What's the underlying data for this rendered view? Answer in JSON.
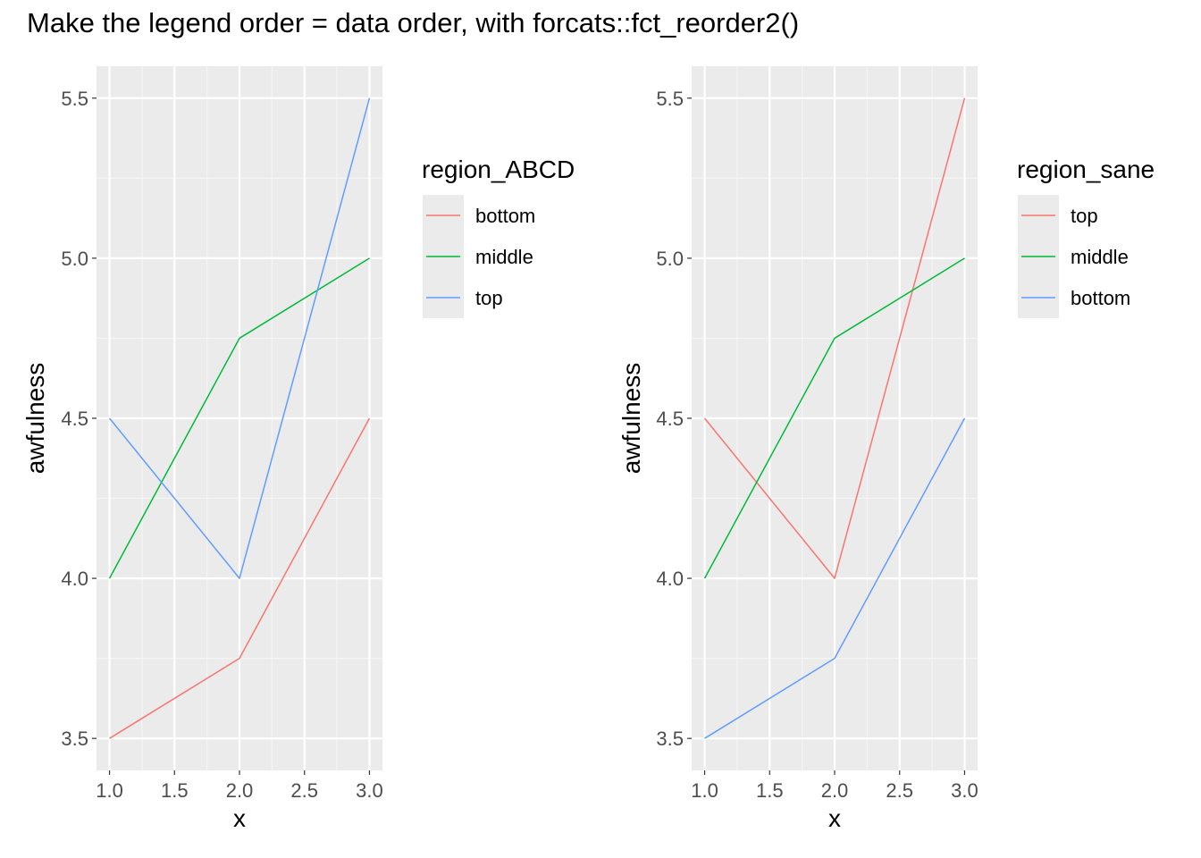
{
  "title": "Make the legend order = data order, with forcats::fct_reorder2()",
  "colors": {
    "panel_bg": "#EBEBEB",
    "grid_major": "#FFFFFF",
    "grid_minor": "#F5F5F5",
    "tick_text": "#4D4D4D",
    "red": "#F8766D",
    "green": "#00BA38",
    "blue": "#619CFF"
  },
  "chart_data": [
    {
      "type": "line",
      "xlabel": "x",
      "ylabel": "awfulness",
      "xlim": [
        0.9,
        3.1
      ],
      "ylim": [
        3.4,
        5.6
      ],
      "x_ticks": [
        1.0,
        1.5,
        2.0,
        2.5,
        3.0
      ],
      "x_tick_labels": [
        "1.0",
        "1.5",
        "2.0",
        "2.5",
        "3.0"
      ],
      "y_ticks": [
        3.5,
        4.0,
        4.5,
        5.0,
        5.5
      ],
      "y_tick_labels": [
        "3.5",
        "4.0",
        "4.5",
        "5.0",
        "5.5"
      ],
      "grid": true,
      "legend_title": "region_ABCD",
      "legend_position": "right",
      "series": [
        {
          "name": "bottom",
          "color": "#F8766D",
          "x": [
            1,
            2,
            3
          ],
          "y": [
            3.5,
            3.75,
            4.5
          ]
        },
        {
          "name": "middle",
          "color": "#00BA38",
          "x": [
            1,
            2,
            3
          ],
          "y": [
            4.0,
            4.75,
            5.0
          ]
        },
        {
          "name": "top",
          "color": "#619CFF",
          "x": [
            1,
            2,
            3
          ],
          "y": [
            4.5,
            4.0,
            5.5
          ]
        }
      ]
    },
    {
      "type": "line",
      "xlabel": "x",
      "ylabel": "awfulness",
      "xlim": [
        0.9,
        3.1
      ],
      "ylim": [
        3.4,
        5.6
      ],
      "x_ticks": [
        1.0,
        1.5,
        2.0,
        2.5,
        3.0
      ],
      "x_tick_labels": [
        "1.0",
        "1.5",
        "2.0",
        "2.5",
        "3.0"
      ],
      "y_ticks": [
        3.5,
        4.0,
        4.5,
        5.0,
        5.5
      ],
      "y_tick_labels": [
        "3.5",
        "4.0",
        "4.5",
        "5.0",
        "5.5"
      ],
      "grid": true,
      "legend_title": "region_sane",
      "legend_position": "right",
      "series": [
        {
          "name": "top",
          "color": "#F8766D",
          "x": [
            1,
            2,
            3
          ],
          "y": [
            4.5,
            4.0,
            5.5
          ]
        },
        {
          "name": "middle",
          "color": "#00BA38",
          "x": [
            1,
            2,
            3
          ],
          "y": [
            4.0,
            4.75,
            5.0
          ]
        },
        {
          "name": "bottom",
          "color": "#619CFF",
          "x": [
            1,
            2,
            3
          ],
          "y": [
            3.5,
            3.75,
            4.5
          ]
        }
      ]
    }
  ]
}
